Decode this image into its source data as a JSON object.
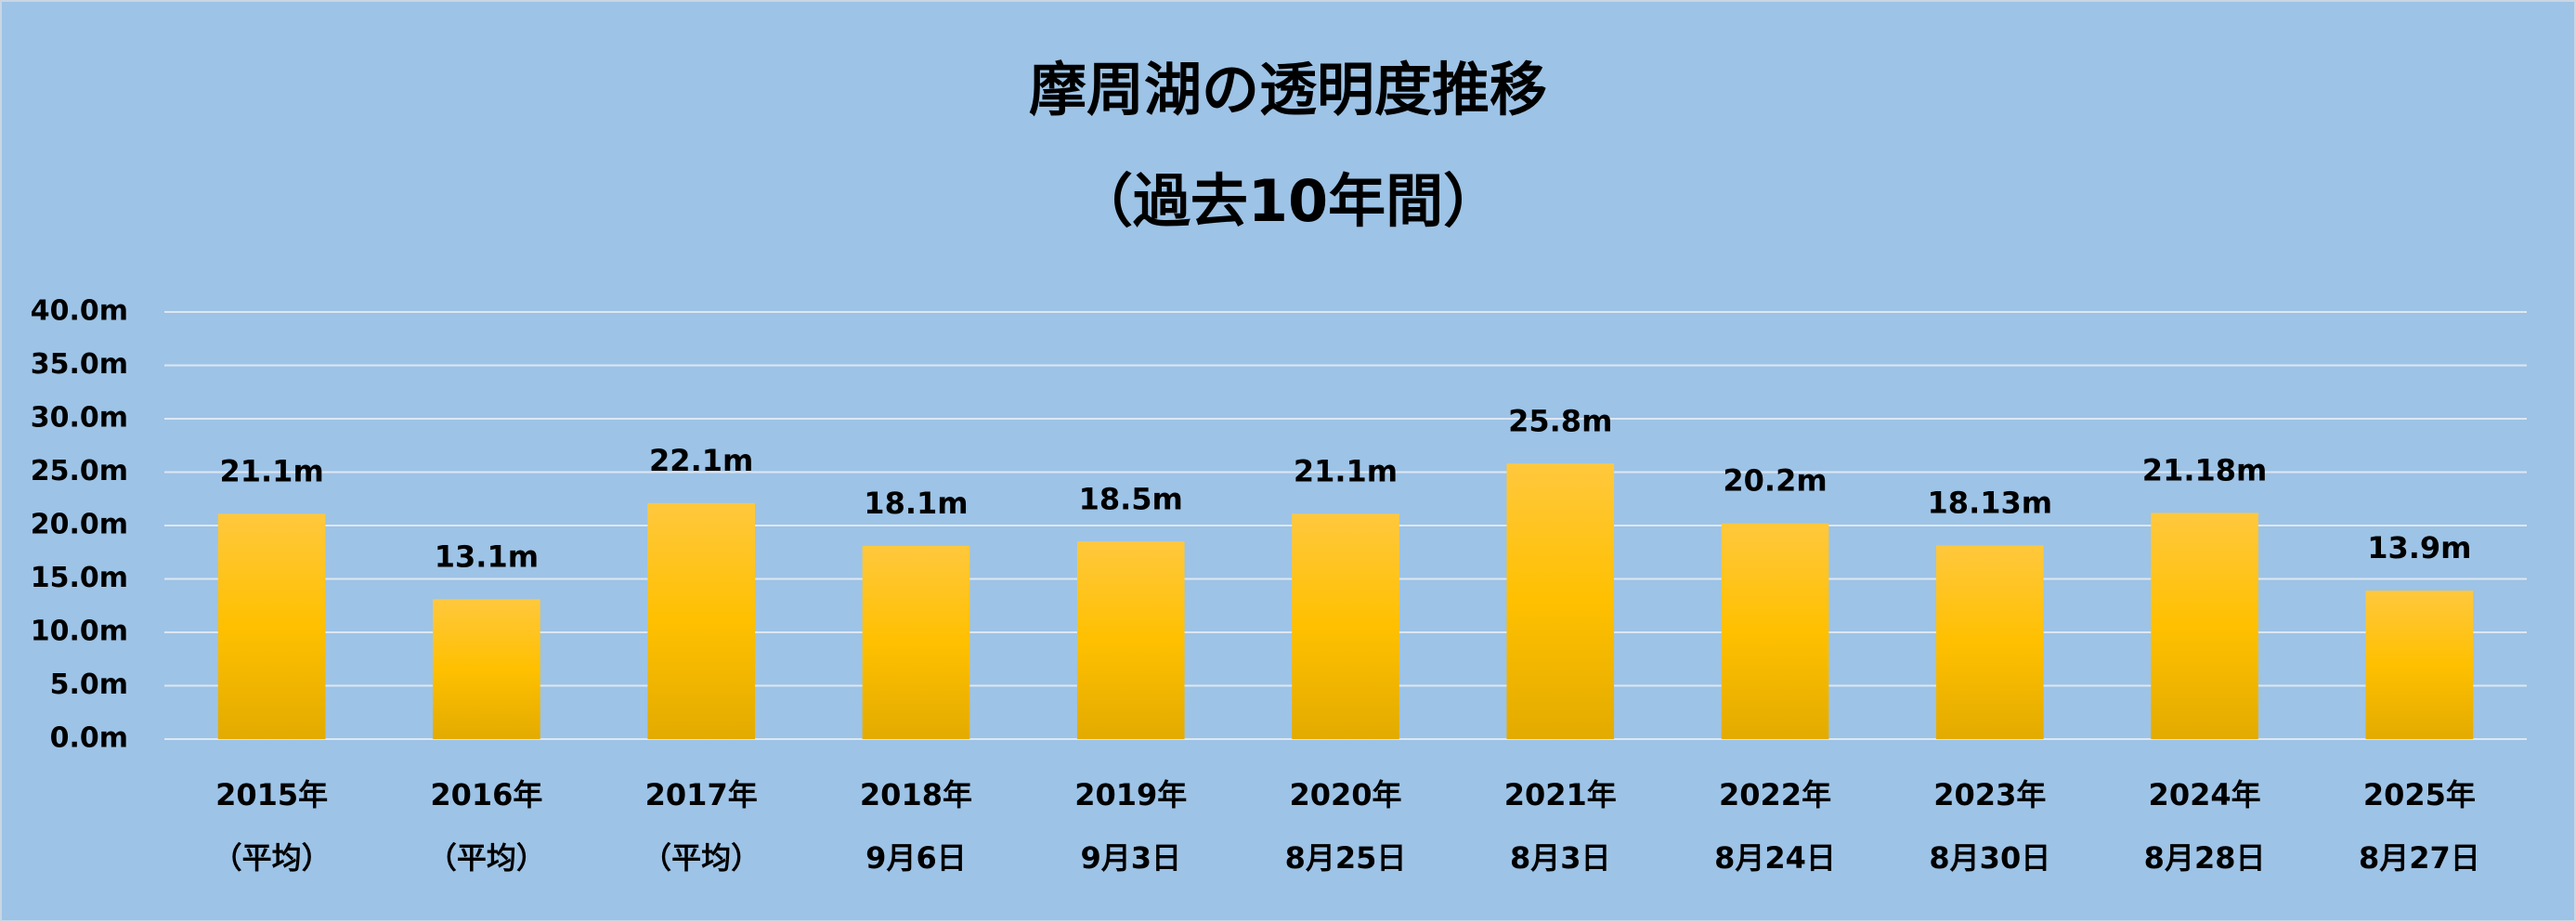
{
  "chart_data": {
    "type": "bar",
    "title": [
      "摩周湖の透明度推移",
      "（過去10年間）"
    ],
    "categories": [
      [
        "2015年",
        "（平均）"
      ],
      [
        "2016年",
        "（平均）"
      ],
      [
        "2017年",
        "（平均）"
      ],
      [
        "2018年",
        "9月6日"
      ],
      [
        "2019年",
        "9月3日"
      ],
      [
        "2020年",
        "8月25日"
      ],
      [
        "2021年",
        "8月3日"
      ],
      [
        "2022年",
        "8月24日"
      ],
      [
        "2023年",
        "8月30日"
      ],
      [
        "2024年",
        "8月28日"
      ],
      [
        "2025年",
        "8月27日"
      ]
    ],
    "values": [
      21.1,
      13.1,
      22.1,
      18.1,
      18.5,
      21.1,
      25.8,
      20.2,
      18.13,
      21.18,
      13.9
    ],
    "value_labels": [
      "21.1m",
      "13.1m",
      "22.1m",
      "18.1m",
      "18.5m",
      "21.1m",
      "25.8m",
      "20.2m",
      "18.13m",
      "21.18m",
      "13.9m"
    ],
    "color": "#ffc000",
    "ylim": [
      0,
      40
    ],
    "yticks": [
      {
        "value": 0,
        "label": "0.0m"
      },
      {
        "value": 5,
        "label": "5.0m"
      },
      {
        "value": 10,
        "label": "10.0m"
      },
      {
        "value": 15,
        "label": "15.0m"
      },
      {
        "value": 20,
        "label": "20.0m"
      },
      {
        "value": 25,
        "label": "25.0m"
      },
      {
        "value": 30,
        "label": "30.0m"
      },
      {
        "value": 35,
        "label": "35.0m"
      },
      {
        "value": 40,
        "label": "40.0m"
      }
    ],
    "grid": true
  }
}
